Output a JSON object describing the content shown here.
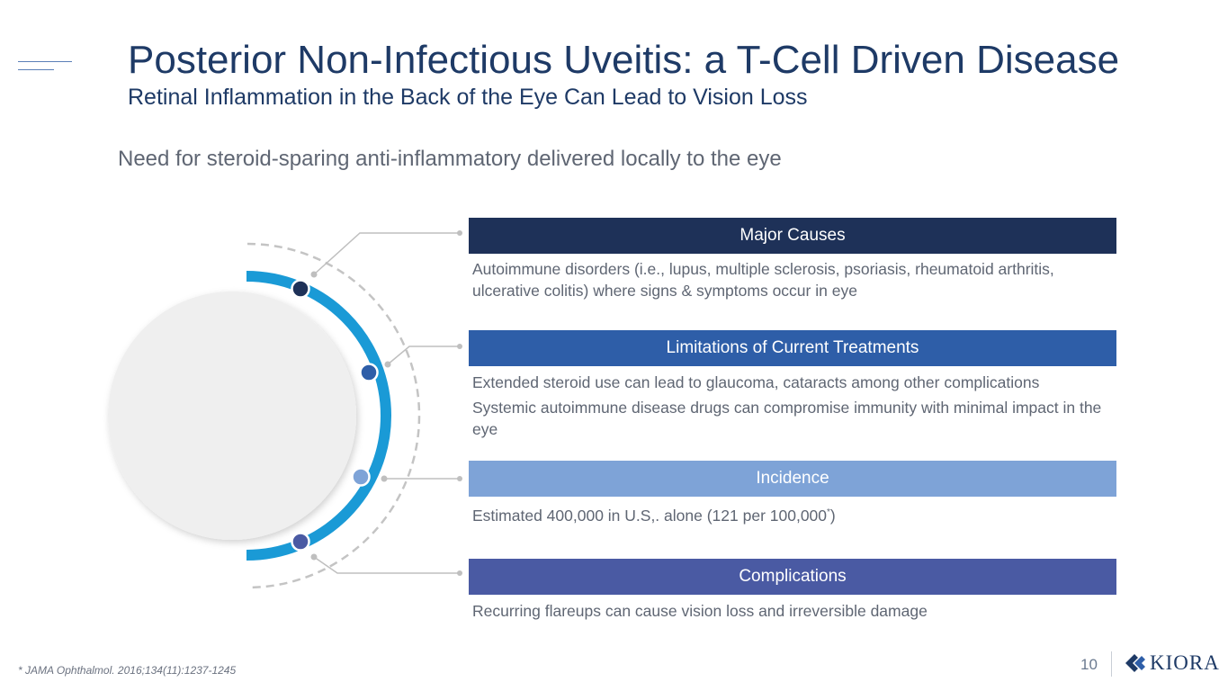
{
  "title": "Posterior Non-Infectious Uveitis: a T-Cell Driven Disease",
  "subtitle": "Retinal Inflammation in the Back of the Eye Can Lead to Vision Loss",
  "lead": "Need for steroid-sparing anti-inflammatory delivered locally to the eye",
  "sections": [
    {
      "header": "Major Causes",
      "color": "#1e3158",
      "lines": [
        "Autoimmune disorders (i.e., lupus, multiple sclerosis, psoriasis, rheumatoid arthritis, ulcerative colitis) where signs & symptoms occur in eye"
      ]
    },
    {
      "header": "Limitations of Current Treatments",
      "color": "#2e5ea8",
      "lines": [
        "Extended steroid use can lead to glaucoma, cataracts among other complications",
        "Systemic autoimmune disease drugs can compromise immunity with minimal impact in the eye"
      ]
    },
    {
      "header": "Incidence",
      "color": "#7ea3d7",
      "lines": [
        "Estimated 400,000 in U.S,. alone (121 per 100,000",
        "*",
        ")"
      ]
    },
    {
      "header": "Complications",
      "color": "#4a5aa3",
      "lines": [
        "Recurring flareups can cause vision loss and irreversible damage"
      ]
    }
  ],
  "graphic": {
    "arc_color": "#1a9ad6",
    "dot_colors": [
      "#1e3158",
      "#2e5ea8",
      "#7ea3d7",
      "#4a5aa3"
    ]
  },
  "footnote": "* JAMA Ophthalmol. 2016;134(11):1237-1245",
  "page_number": "10",
  "logo": {
    "text": "KIORA",
    "color": "#1e3a66"
  }
}
